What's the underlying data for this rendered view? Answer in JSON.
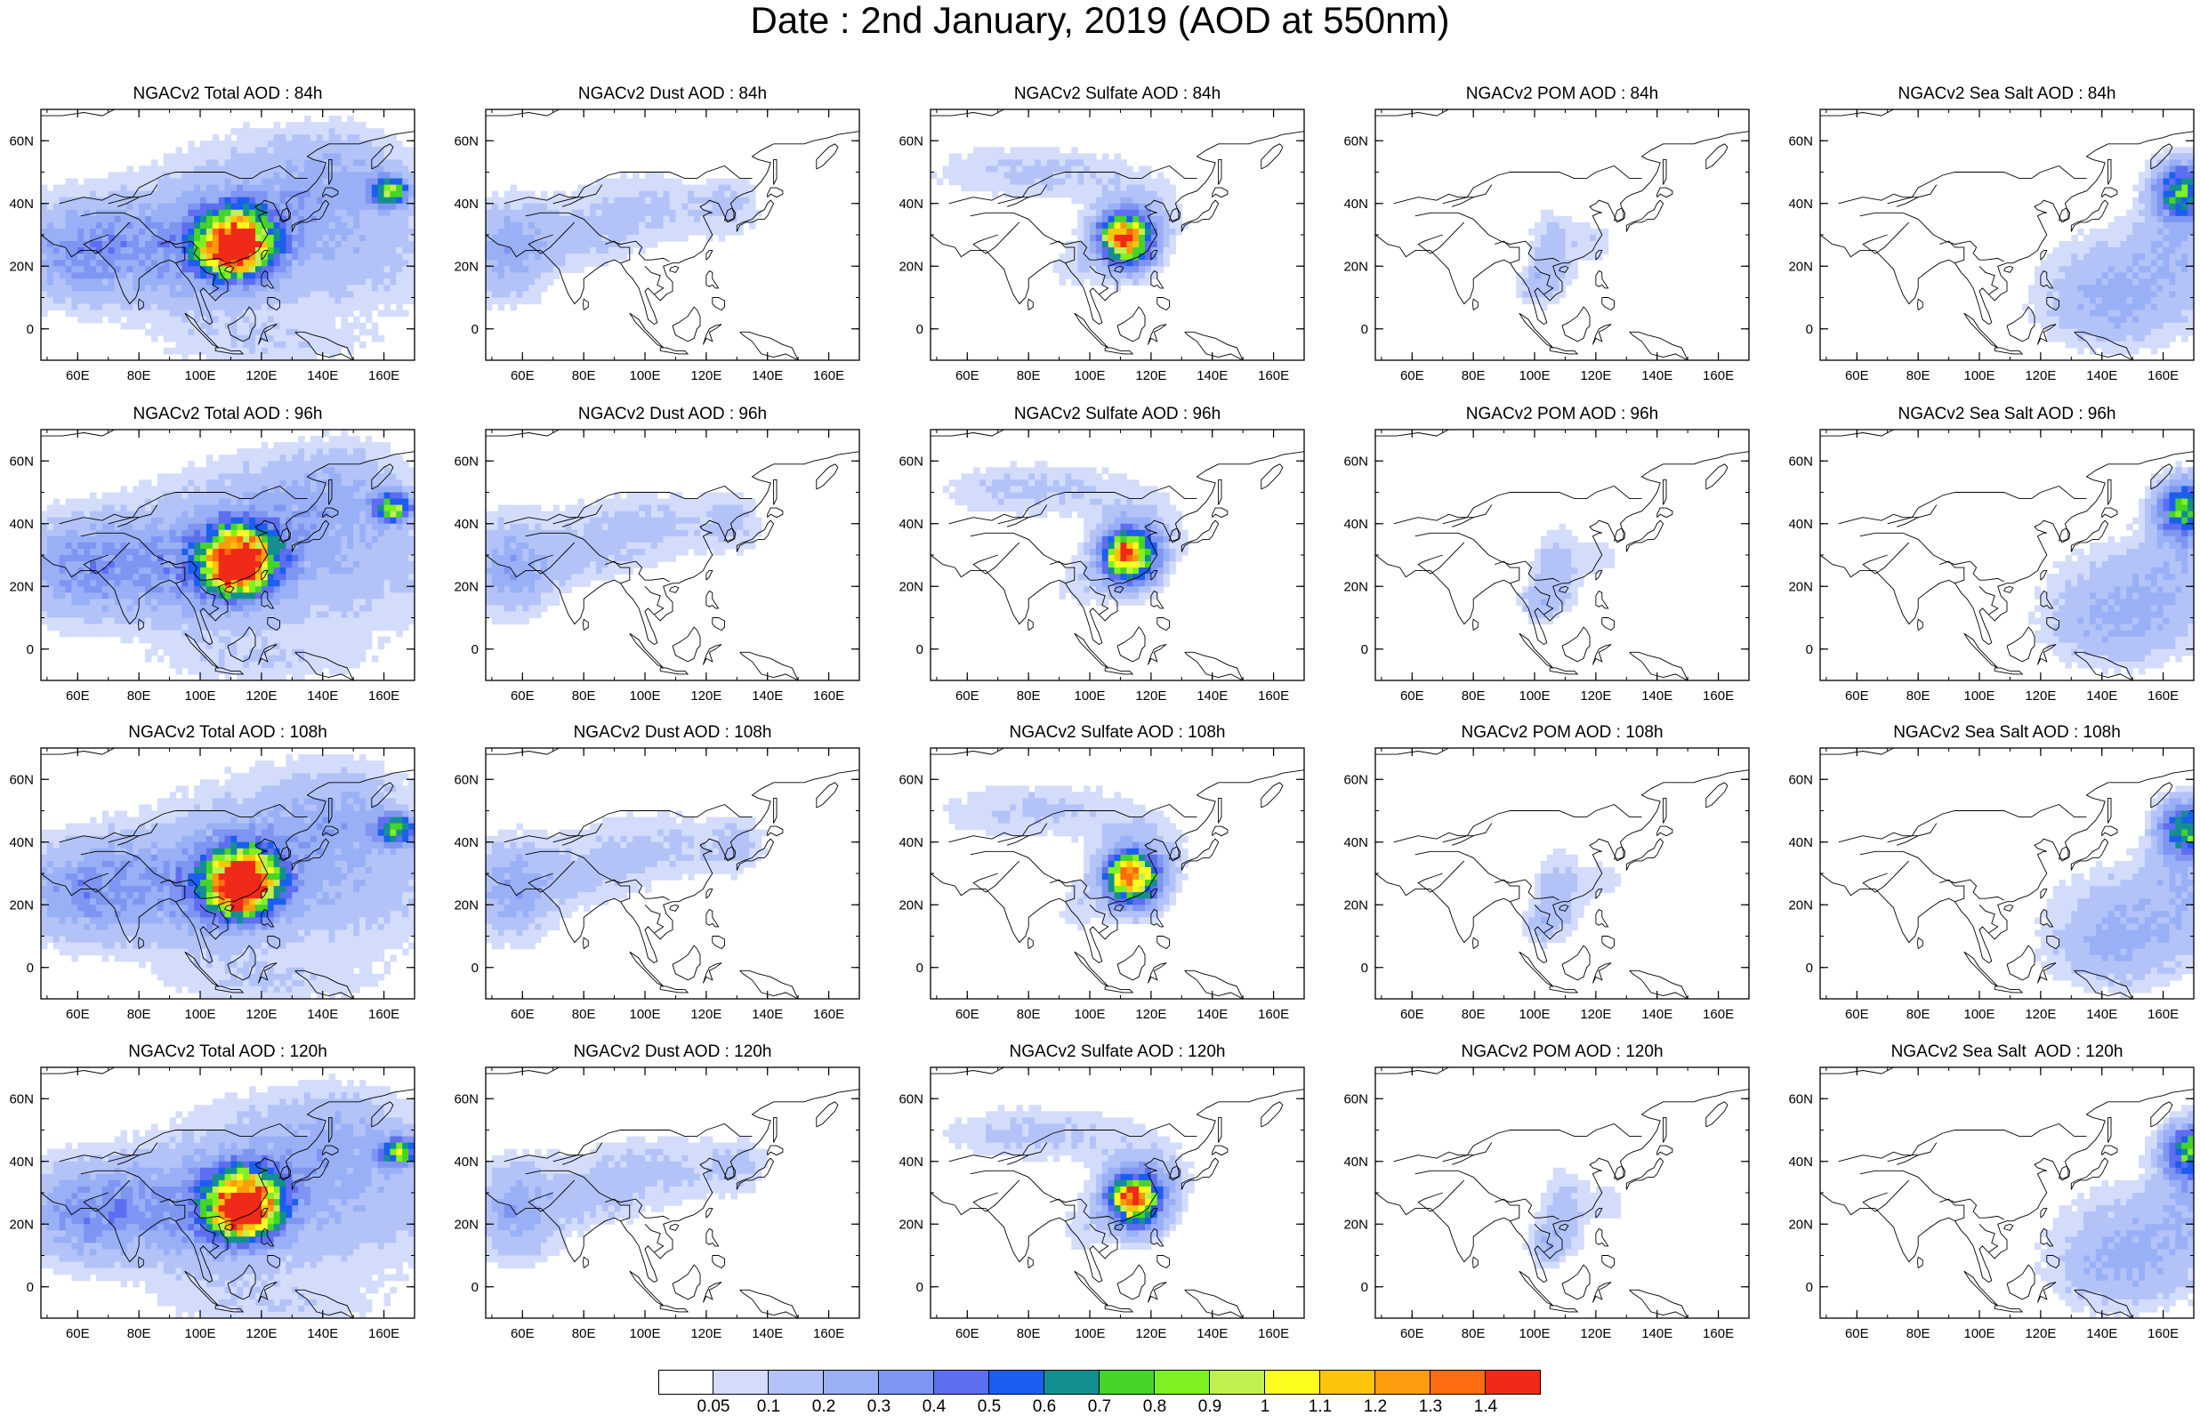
{
  "title": "Date : 2nd January, 2019 (AOD at 550nm)",
  "panel_titles": [
    [
      "NGACv2 Total AOD : 84h",
      "NGACv2 Dust AOD : 84h",
      "NGACv2 Sulfate AOD : 84h",
      "NGACv2 POM AOD : 84h",
      "NGACv2 Sea Salt AOD : 84h"
    ],
    [
      "NGACv2 Total AOD : 96h",
      "NGACv2 Dust AOD : 96h",
      "NGACv2 Sulfate AOD : 96h",
      "NGACv2 POM AOD : 96h",
      "NGACv2 Sea Salt AOD : 96h"
    ],
    [
      "NGACv2 Total AOD : 108h",
      "NGACv2 Dust AOD : 108h",
      "NGACv2 Sulfate AOD : 108h",
      "NGACv2 POM AOD : 108h",
      "NGACv2 Sea Salt AOD : 108h"
    ],
    [
      "NGACv2 Total AOD : 120h",
      "NGACv2 Dust AOD : 120h",
      "NGACv2 Sulfate AOD : 120h",
      "NGACv2 POM AOD : 120h",
      "NGACv2 Sea Salt  AOD : 120h"
    ]
  ],
  "map_extent": {
    "lon": [
      48,
      170
    ],
    "lat": [
      -10,
      70
    ]
  },
  "lon_ticks": [
    60,
    80,
    100,
    120,
    140,
    160
  ],
  "lat_ticks": [
    0,
    20,
    40,
    60
  ],
  "lon_tick_labels": [
    "60E",
    "80E",
    "100E",
    "120E",
    "140E",
    "160E"
  ],
  "lat_tick_labels": [
    "0",
    "20N",
    "40N",
    "60N"
  ],
  "colorbar": {
    "levels": [
      "0.05",
      "0.1",
      "0.2",
      "0.3",
      "0.4",
      "0.5",
      "0.6",
      "0.7",
      "0.8",
      "0.9",
      "1",
      "1.1",
      "1.2",
      "1.3",
      "1.4"
    ],
    "colors": [
      "#ffffff",
      "#d3dcfb",
      "#b3c3f8",
      "#99b0f6",
      "#7e96f2",
      "#5e6ef0",
      "#1b5ef0",
      "#138f8f",
      "#44d42a",
      "#7ff020",
      "#c0f050",
      "#fdfd1e",
      "#fdc40c",
      "#fd9c0c",
      "#fd6c10",
      "#f02a18"
    ]
  },
  "coastline_color": "#000000"
}
